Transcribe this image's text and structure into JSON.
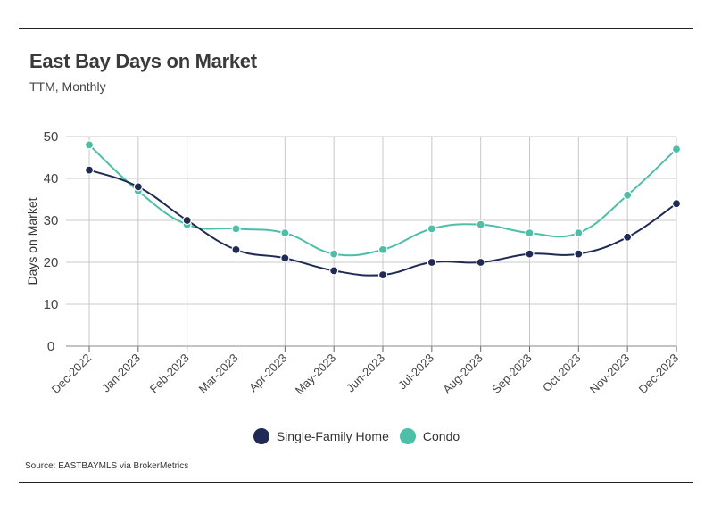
{
  "header": {
    "title": "East Bay Days on Market",
    "subtitle": "TTM, Monthly"
  },
  "footer": {
    "source": "Source:  EASTBAYMLS via BrokerMetrics"
  },
  "colors": {
    "sfh": "#1f2a55",
    "condo": "#4dbfa8",
    "grid": "#c8c8c8"
  },
  "chart_data": {
    "type": "line",
    "title": "East Bay Days on Market",
    "subtitle": "TTM, Monthly",
    "xlabel": "",
    "ylabel": "Days on Market",
    "ylim": [
      0,
      50
    ],
    "yticks": [
      "0",
      "10",
      "20",
      "30",
      "40",
      "50"
    ],
    "categories": [
      "Dec-2022",
      "Jan-2023",
      "Feb-2023",
      "Mar-2023",
      "Apr-2023",
      "May-2023",
      "Jun-2023",
      "Jul-2023",
      "Aug-2023",
      "Sep-2023",
      "Oct-2023",
      "Nov-2023",
      "Dec-2023"
    ],
    "grid": true,
    "legend": "bottom",
    "series": [
      {
        "name": "Single-Family Home",
        "values": [
          42,
          38,
          30,
          23,
          21,
          18,
          17,
          20,
          20,
          22,
          22,
          26,
          34
        ]
      },
      {
        "name": "Condo",
        "values": [
          48,
          37,
          29,
          28,
          27,
          22,
          23,
          28,
          29,
          27,
          27,
          36,
          47
        ]
      }
    ]
  }
}
